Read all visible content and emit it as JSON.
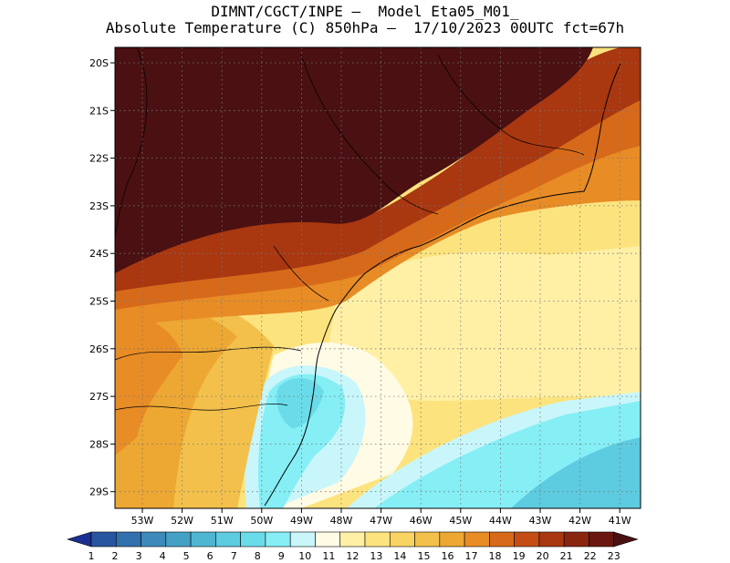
{
  "title": {
    "line1": "DIMNT/CGCT/INPE –  Model Eta05_M01_",
    "line2": "Absolute Temperature (C) 850hPa –  17/10/2023 00UTC fct=67h"
  },
  "map": {
    "lat_labels": [
      "20S",
      "21S",
      "22S",
      "23S",
      "24S",
      "25S",
      "26S",
      "27S",
      "28S",
      "29S"
    ],
    "lon_labels": [
      "53W",
      "52W",
      "51W",
      "50W",
      "49W",
      "48W",
      "47W",
      "46W",
      "45W",
      "44W",
      "43W",
      "42W",
      "41W"
    ],
    "grid": true,
    "lat_range": [
      -29.4,
      -19.8
    ],
    "lon_range": [
      -53.6,
      -40.6
    ]
  },
  "colorbar": {
    "labels": [
      "1",
      "2",
      "3",
      "4",
      "5",
      "6",
      "7",
      "8",
      "9",
      "10",
      "11",
      "12",
      "13",
      "14",
      "15",
      "16",
      "17",
      "18",
      "19",
      "20",
      "21",
      "22",
      "23"
    ],
    "colors": [
      "#1a2f8f",
      "#27559f",
      "#3370ae",
      "#3c89ba",
      "#45a0c6",
      "#4fb6d2",
      "#5dcbe0",
      "#6adbe9",
      "#86eef5",
      "#c8f6fa",
      "#fffbe5",
      "#fff0a6",
      "#fde37e",
      "#f9d463",
      "#f2c04b",
      "#eda733",
      "#e88c26",
      "#d76a1a",
      "#c44d15",
      "#a93710",
      "#8a2610",
      "#6a180f",
      "#4a1012"
    ],
    "triangles": "both"
  }
}
